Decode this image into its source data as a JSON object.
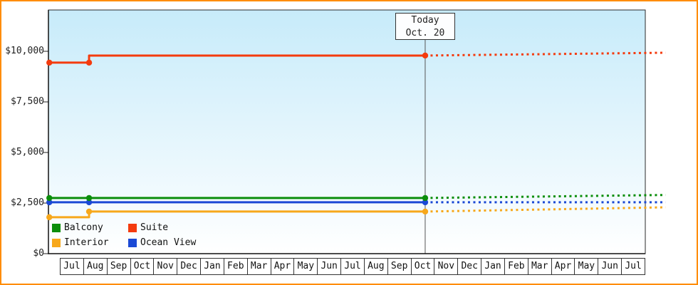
{
  "window": {
    "border_color": "#ff8c00"
  },
  "chart_data": {
    "type": "line",
    "title": "",
    "xlabel": "",
    "ylabel": "",
    "grid": false,
    "background": {
      "top_color": "#c7ebfa",
      "bottom_color": "#ffffff"
    },
    "ylim": [
      0,
      12000
    ],
    "y_axis": {
      "ticks": [
        {
          "label": "$0",
          "value": 0
        },
        {
          "label": "$2,500",
          "value": 2500
        },
        {
          "label": "$5,000",
          "value": 5000
        },
        {
          "label": "$7,500",
          "value": 7500
        },
        {
          "label": "$10,000",
          "value": 10000
        }
      ]
    },
    "x_axis": {
      "months": [
        "Jul",
        "Aug",
        "Sep",
        "Oct",
        "Nov",
        "Dec",
        "Jan",
        "Feb",
        "Mar",
        "Apr",
        "May",
        "Jun",
        "Jul",
        "Aug",
        "Sep",
        "Oct",
        "Nov",
        "Dec",
        "Jan",
        "Feb",
        "Mar",
        "Apr",
        "May",
        "Jun",
        "Jul"
      ]
    },
    "today_annotation": {
      "line1": "Today",
      "line2": "Oct. 20",
      "t": 15.62
    },
    "series": [
      {
        "name": "Suite",
        "color": "#f43b0e",
        "history": [
          [
            -0.45,
            9440
          ],
          [
            1.25,
            9440
          ],
          [
            1.25,
            9790
          ],
          [
            15.62,
            9790
          ]
        ],
        "markers": [
          [
            -0.45,
            9440
          ],
          [
            1.25,
            9440
          ],
          [
            15.62,
            9790
          ]
        ],
        "forecast": [
          [
            15.62,
            9790
          ],
          [
            25.9,
            9930
          ]
        ]
      },
      {
        "name": "Interior",
        "color": "#f7a81b",
        "history": [
          [
            -0.45,
            1800
          ],
          [
            1.25,
            1800
          ],
          [
            1.25,
            2080
          ],
          [
            15.62,
            2080
          ]
        ],
        "markers": [
          [
            -0.45,
            1800
          ],
          [
            1.25,
            2080
          ],
          [
            15.62,
            2080
          ]
        ],
        "forecast": [
          [
            15.62,
            2080
          ],
          [
            25.9,
            2290
          ]
        ]
      },
      {
        "name": "Ocean View",
        "color": "#1b49d5",
        "history": [
          [
            -0.45,
            2540
          ],
          [
            1.25,
            2540
          ],
          [
            15.62,
            2540
          ]
        ],
        "markers": [
          [
            -0.45,
            2540
          ],
          [
            1.25,
            2540
          ],
          [
            15.62,
            2540
          ]
        ],
        "forecast": [
          [
            15.62,
            2540
          ],
          [
            25.9,
            2540
          ]
        ]
      },
      {
        "name": "Balcony",
        "color": "#0b8e0b",
        "history": [
          [
            -0.45,
            2750
          ],
          [
            1.25,
            2750
          ],
          [
            15.62,
            2750
          ]
        ],
        "markers": [
          [
            -0.45,
            2750
          ],
          [
            1.25,
            2750
          ],
          [
            15.62,
            2750
          ]
        ],
        "forecast": [
          [
            15.62,
            2750
          ],
          [
            25.9,
            2900
          ]
        ]
      }
    ],
    "legend": [
      {
        "label": "Balcony",
        "color": "#0b8e0b"
      },
      {
        "label": "Suite",
        "color": "#f43b0e"
      },
      {
        "label": "Interior",
        "color": "#f7a81b"
      },
      {
        "label": "Ocean View",
        "color": "#1b49d5"
      }
    ],
    "legend_position": "bottom-left-inside"
  }
}
